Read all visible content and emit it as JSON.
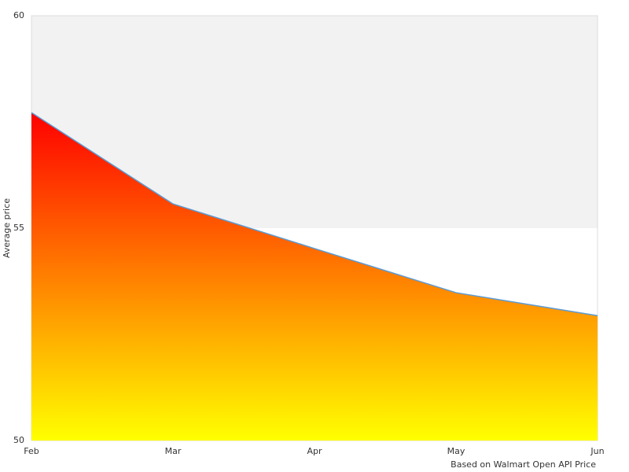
{
  "chart_data": {
    "type": "area",
    "x_label": "Based on Walmart Open API Price",
    "y_label": "Average price",
    "categories": [
      "Feb",
      "Mar",
      "Apr",
      "May",
      "Jun"
    ],
    "series": [
      {
        "name": "Average price",
        "color": "#5b9bd5",
        "gradient": [
          "#ff0000",
          "#ffff00"
        ],
        "values": [
          57.72,
          55.57,
          54.52,
          53.48,
          52.94
        ]
      }
    ],
    "ylim": [
      50,
      60
    ],
    "yticks": [
      50,
      55,
      60
    ],
    "grid_band_color": "#f2f2f2"
  }
}
